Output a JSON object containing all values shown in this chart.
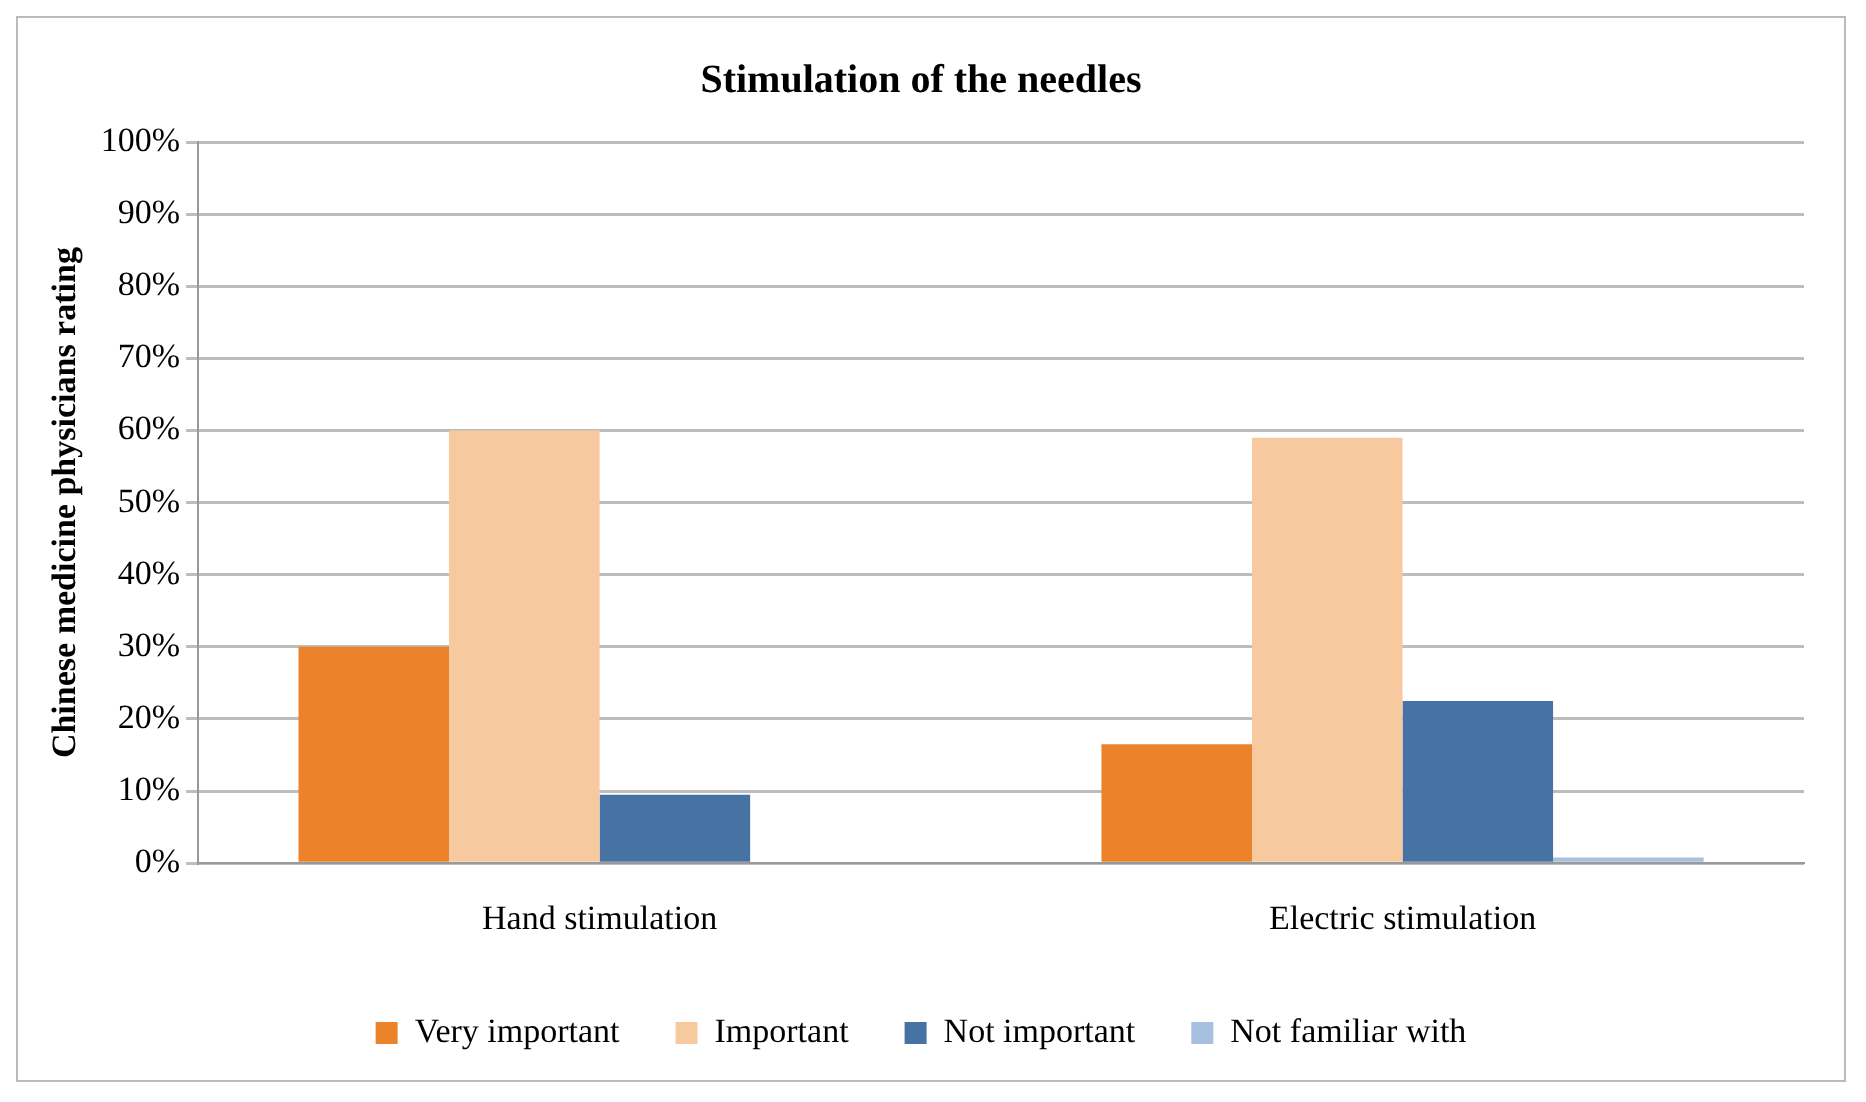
{
  "chart_data": {
    "type": "bar",
    "title": "Stimulation of the needles",
    "ylabel": "Chinese medicine physicians rating",
    "categories": [
      "Hand stimulation",
      "Electric stimulation"
    ],
    "series": [
      {
        "name": "Very important",
        "color": "#ec822a",
        "values": [
          30,
          16.5
        ]
      },
      {
        "name": "Important",
        "color": "#f6c99e",
        "values": [
          60,
          59
        ]
      },
      {
        "name": "Not important",
        "color": "#4672a4",
        "values": [
          9.5,
          22.5
        ]
      },
      {
        "name": "Not familiar with",
        "color": "#a7c0e0",
        "values": [
          0,
          0.8
        ]
      }
    ],
    "ylim": [
      0,
      100
    ],
    "yticks": [
      {
        "value": 0,
        "label": "0%"
      },
      {
        "value": 10,
        "label": "10%"
      },
      {
        "value": 20,
        "label": "20%"
      },
      {
        "value": 30,
        "label": "30%"
      },
      {
        "value": 40,
        "label": "40%"
      },
      {
        "value": 50,
        "label": "50%"
      },
      {
        "value": 60,
        "label": "60%"
      },
      {
        "value": 70,
        "label": "70%"
      },
      {
        "value": 80,
        "label": "80%"
      },
      {
        "value": 90,
        "label": "90%"
      },
      {
        "value": 100,
        "label": "100%"
      }
    ],
    "grid": "y",
    "legend": "bottom"
  }
}
